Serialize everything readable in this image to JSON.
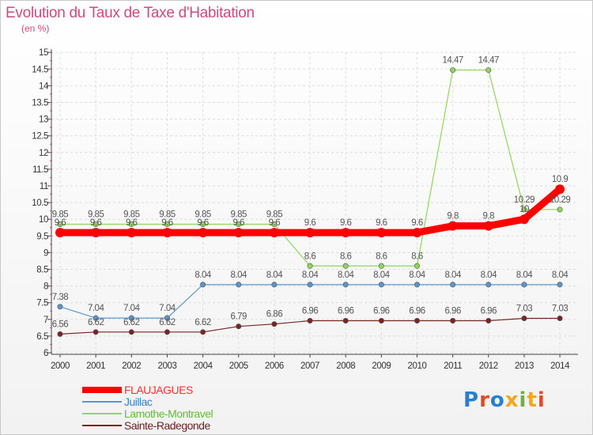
{
  "title": "Evolution du Taux de Taxe d'Habitation",
  "subtitle": "(en %)",
  "brand": {
    "text": "Proxiti",
    "letter_colors": [
      "#2b7fd0",
      "#e24a2c",
      "#2b7fd0",
      "#f2a81b",
      "#6db33f",
      "#f2a81b",
      "#e24a2c"
    ]
  },
  "chart_data": {
    "type": "line",
    "x": [
      "2000",
      "2001",
      "2002",
      "2003",
      "2004",
      "2005",
      "2006",
      "2007",
      "2008",
      "2009",
      "2010",
      "2011",
      "2012",
      "2013",
      "2014"
    ],
    "yticks": [
      "6",
      "6.5",
      "7",
      "7.5",
      "8",
      "8.5",
      "9",
      "9.5",
      "10",
      "10.5",
      "11",
      "11.5",
      "12",
      "12.5",
      "13",
      "13.5",
      "14",
      "14.5",
      "15"
    ],
    "ylim": [
      6,
      15
    ],
    "grid": true,
    "legend_position": "bottom-left",
    "series": [
      {
        "name": "FLAUJAGUES",
        "color": "#ff0000",
        "width": 9,
        "values": [
          9.6,
          9.6,
          9.6,
          9.6,
          9.6,
          9.6,
          9.6,
          9.6,
          9.6,
          9.6,
          9.6,
          9.8,
          9.8,
          10,
          10.9
        ],
        "labels": [
          "9.6",
          "9.6",
          "9.6",
          "9.6",
          "9.6",
          "9.6",
          "9.6",
          "9.6",
          "9.6",
          "9.6",
          "9.6",
          "9.8",
          "9.8",
          "10",
          "10.9"
        ]
      },
      {
        "name": "Juillac",
        "color": "#5b95cc",
        "width": 1.2,
        "values": [
          7.38,
          7.04,
          7.04,
          7.04,
          8.04,
          8.04,
          8.04,
          8.04,
          8.04,
          8.04,
          8.04,
          8.04,
          8.04,
          8.04,
          8.04
        ],
        "labels": [
          "7.38",
          "7.04",
          "7.04",
          "7.04",
          "8.04",
          "8.04",
          "8.04",
          "8.04",
          "8.04",
          "8.04",
          "8.04",
          "8.04",
          "8.04",
          "8.04",
          "8.04"
        ]
      },
      {
        "name": "Lamothe-Montravel",
        "color": "#8fd65a",
        "width": 1.2,
        "values": [
          9.85,
          9.85,
          9.85,
          9.85,
          9.85,
          9.85,
          9.85,
          8.6,
          8.6,
          8.6,
          8.6,
          14.47,
          14.47,
          10.29,
          10.29
        ],
        "labels": [
          "9.85",
          "9.85",
          "9.85",
          "9.85",
          "9.85",
          "9.85",
          "9.85",
          "8.6",
          "8.6",
          "8.6",
          "8.6",
          "14.47",
          "14.47",
          "10.29",
          "10.29"
        ]
      },
      {
        "name": "Sainte-Radegonde",
        "color": "#7a2424",
        "width": 1.2,
        "values": [
          6.56,
          6.62,
          6.62,
          6.62,
          6.62,
          6.79,
          6.86,
          6.96,
          6.96,
          6.96,
          6.96,
          6.96,
          6.96,
          7.03,
          7.03
        ],
        "labels": [
          "6.56",
          "6.62",
          "6.62",
          "6.62",
          "6.62",
          "6.79",
          "6.86",
          "6.96",
          "6.96",
          "6.96",
          "6.96",
          "6.96",
          "6.96",
          "7.03",
          "7.03"
        ]
      }
    ]
  }
}
